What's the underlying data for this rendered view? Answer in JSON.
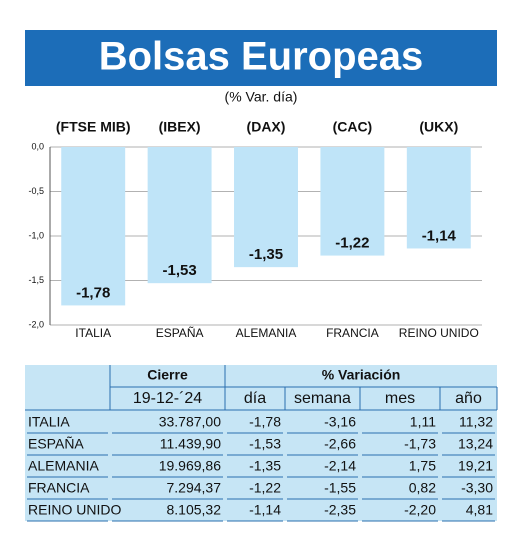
{
  "chart_data": {
    "type": "bar",
    "title": "Bolsas Europeas",
    "subtitle": "(% Var. día)",
    "categories": [
      "ITALIA",
      "ESPAÑA",
      "ALEMANIA",
      "FRANCIA",
      "REINO UNIDO"
    ],
    "indices": [
      "(FTSE MIB)",
      "(IBEX)",
      "(DAX)",
      "(CAC)",
      "(UKX)"
    ],
    "values": [
      -1.78,
      -1.53,
      -1.35,
      -1.22,
      -1.14
    ],
    "value_labels": [
      "-1,78",
      "-1,53",
      "-1,35",
      "-1,22",
      "-1,14"
    ],
    "color": "#bfe4f8",
    "ylim": [
      -2,
      0
    ],
    "yticks": [
      {
        "value": 0,
        "label": "0,0"
      },
      {
        "value": -0.5,
        "label": "-0,5"
      },
      {
        "value": -1,
        "label": "-1,0"
      },
      {
        "value": -1.5,
        "label": "-1,5"
      },
      {
        "value": -2,
        "label": "-2,0"
      }
    ],
    "grid": true
  },
  "table": {
    "header": [
      "Cierre",
      "% Variación"
    ],
    "subheader": [
      "19-12-´24",
      "día",
      "semana",
      "mes",
      "año"
    ],
    "rows": [
      [
        "ITALIA",
        "33.787,00",
        "-1,78",
        "-3,16",
        "1,11",
        "11,32"
      ],
      [
        "ESPAÑA",
        "11.439,90",
        "-1,53",
        "-2,66",
        "-1,73",
        "13,24"
      ],
      [
        "ALEMANIA",
        "19.969,86",
        "-1,35",
        "-2,14",
        "1,75",
        "19,21"
      ],
      [
        "FRANCIA",
        "7.294,37",
        "-1,22",
        "-1,55",
        "0,82",
        "-3,30"
      ],
      [
        "REINO UNIDO",
        "8.105,32",
        "-1,14",
        "-2,35",
        "-2,20",
        "4,81"
      ]
    ]
  }
}
